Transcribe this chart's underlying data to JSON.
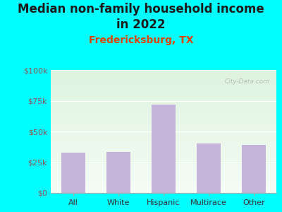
{
  "title_line1": "Median non-family household income",
  "title_line2": "in 2022",
  "subtitle": "Fredericksburg, TX",
  "categories": [
    "All",
    "White",
    "Hispanic",
    "Multirace",
    "Other"
  ],
  "values": [
    33000,
    33500,
    72000,
    40000,
    39000
  ],
  "bar_color": "#c5b3d9",
  "ylim": [
    0,
    100000
  ],
  "yticks": [
    0,
    25000,
    50000,
    75000,
    100000
  ],
  "ytick_labels": [
    "$0",
    "$25k",
    "$50k",
    "$75k",
    "$100k"
  ],
  "outer_bg": "#00ffff",
  "plot_bg_top": "#ddeedd",
  "plot_bg_bottom": "#f0f8f0",
  "title_fontsize": 12,
  "subtitle_fontsize": 10,
  "subtitle_color": "#dd4400",
  "title_color": "#1a1a1a",
  "tick_color": "#885555",
  "xtick_color": "#333333",
  "watermark": "City-Data.com"
}
